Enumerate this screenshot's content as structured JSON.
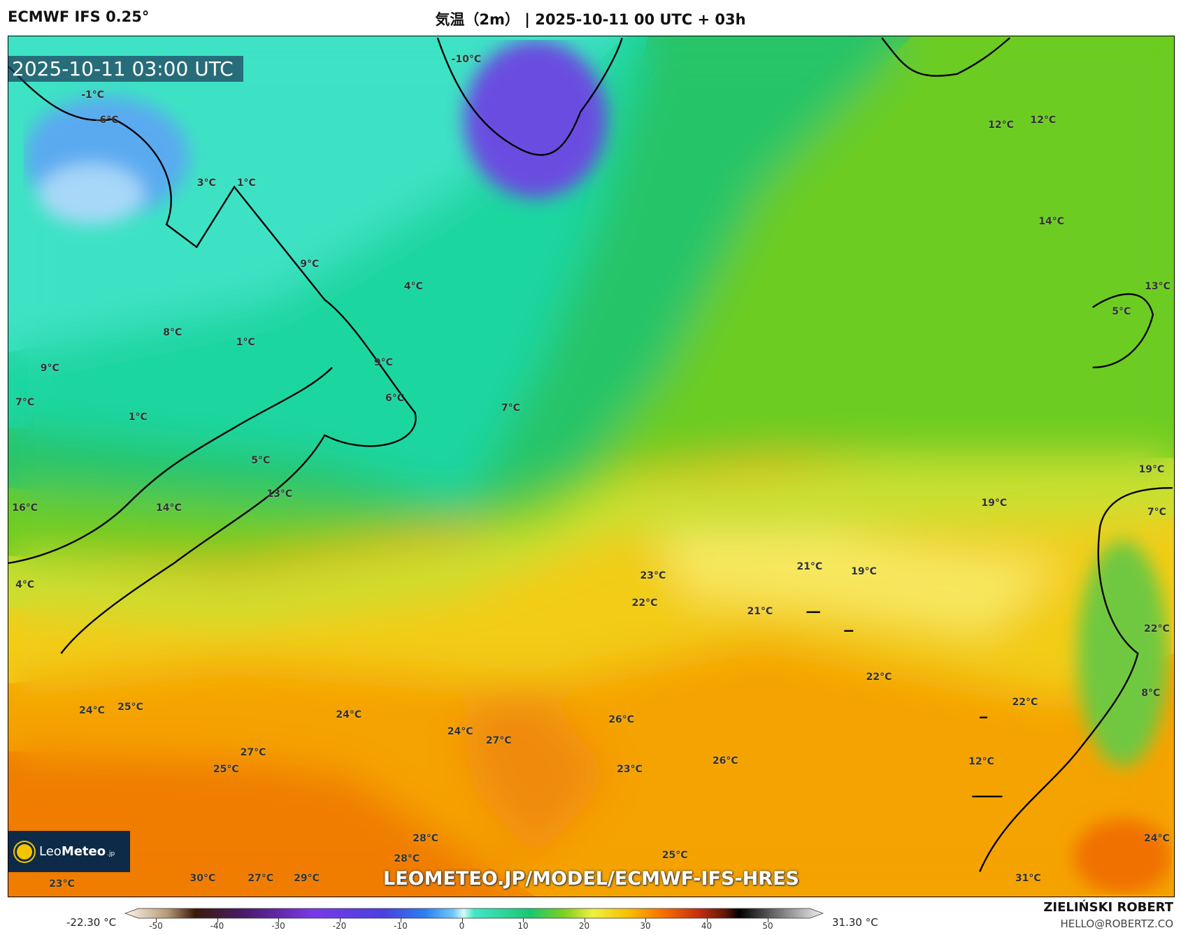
{
  "header": {
    "model": "ECMWF IFS 0.25°",
    "title": "気温（2m） | 2025-10-11 00 UTC + 03h"
  },
  "map": {
    "valid_time": "2025-10-11 03:00 UTC",
    "watermark_url": "LEOMETEO.JP/MODEL/ECMWF-IFS-HRES",
    "logo": {
      "name": "Leo",
      "name_bold": "Meteo",
      "suffix": ".jp"
    },
    "temperature_labels": [
      "-10°C",
      "-1°C",
      "-6°C",
      "3°C",
      "1°C",
      "12°C",
      "12°C",
      "14°C",
      "9°C",
      "4°C",
      "13°C",
      "5°C",
      "8°C",
      "1°C",
      "9°C",
      "9°C",
      "6°C",
      "7°C",
      "7°C",
      "1°C",
      "5°C",
      "13°C",
      "19°C",
      "19°C",
      "16°C",
      "14°C",
      "7°C",
      "21°C",
      "19°C",
      "23°C",
      "4°C",
      "22°C",
      "21°C",
      "22°C",
      "22°C",
      "8°C",
      "22°C",
      "24°C",
      "25°C",
      "24°C",
      "26°C",
      "24°C",
      "27°C",
      "27°C",
      "26°C",
      "12°C",
      "25°C",
      "23°C",
      "28°C",
      "24°C",
      "28°C",
      "25°C",
      "23°C",
      "30°C",
      "27°C",
      "29°C",
      "31°C"
    ]
  },
  "colorbar": {
    "min_label": "-22.30 °C",
    "max_label": "31.30 °C",
    "ticks": [
      "-50",
      "-40",
      "-30",
      "-20",
      "-10",
      "0",
      "10",
      "20",
      "30",
      "40",
      "50"
    ],
    "unit": "°C"
  },
  "credits": {
    "author": "ZIELIŃSKI ROBERT",
    "email": "HELLO@ROBERTZ.CO"
  },
  "colors": {
    "cold": "#6a4de0",
    "cool": "#2fdcb8",
    "mild": "#22c66a",
    "warm": "#f0d030",
    "hot": "#f07800"
  }
}
